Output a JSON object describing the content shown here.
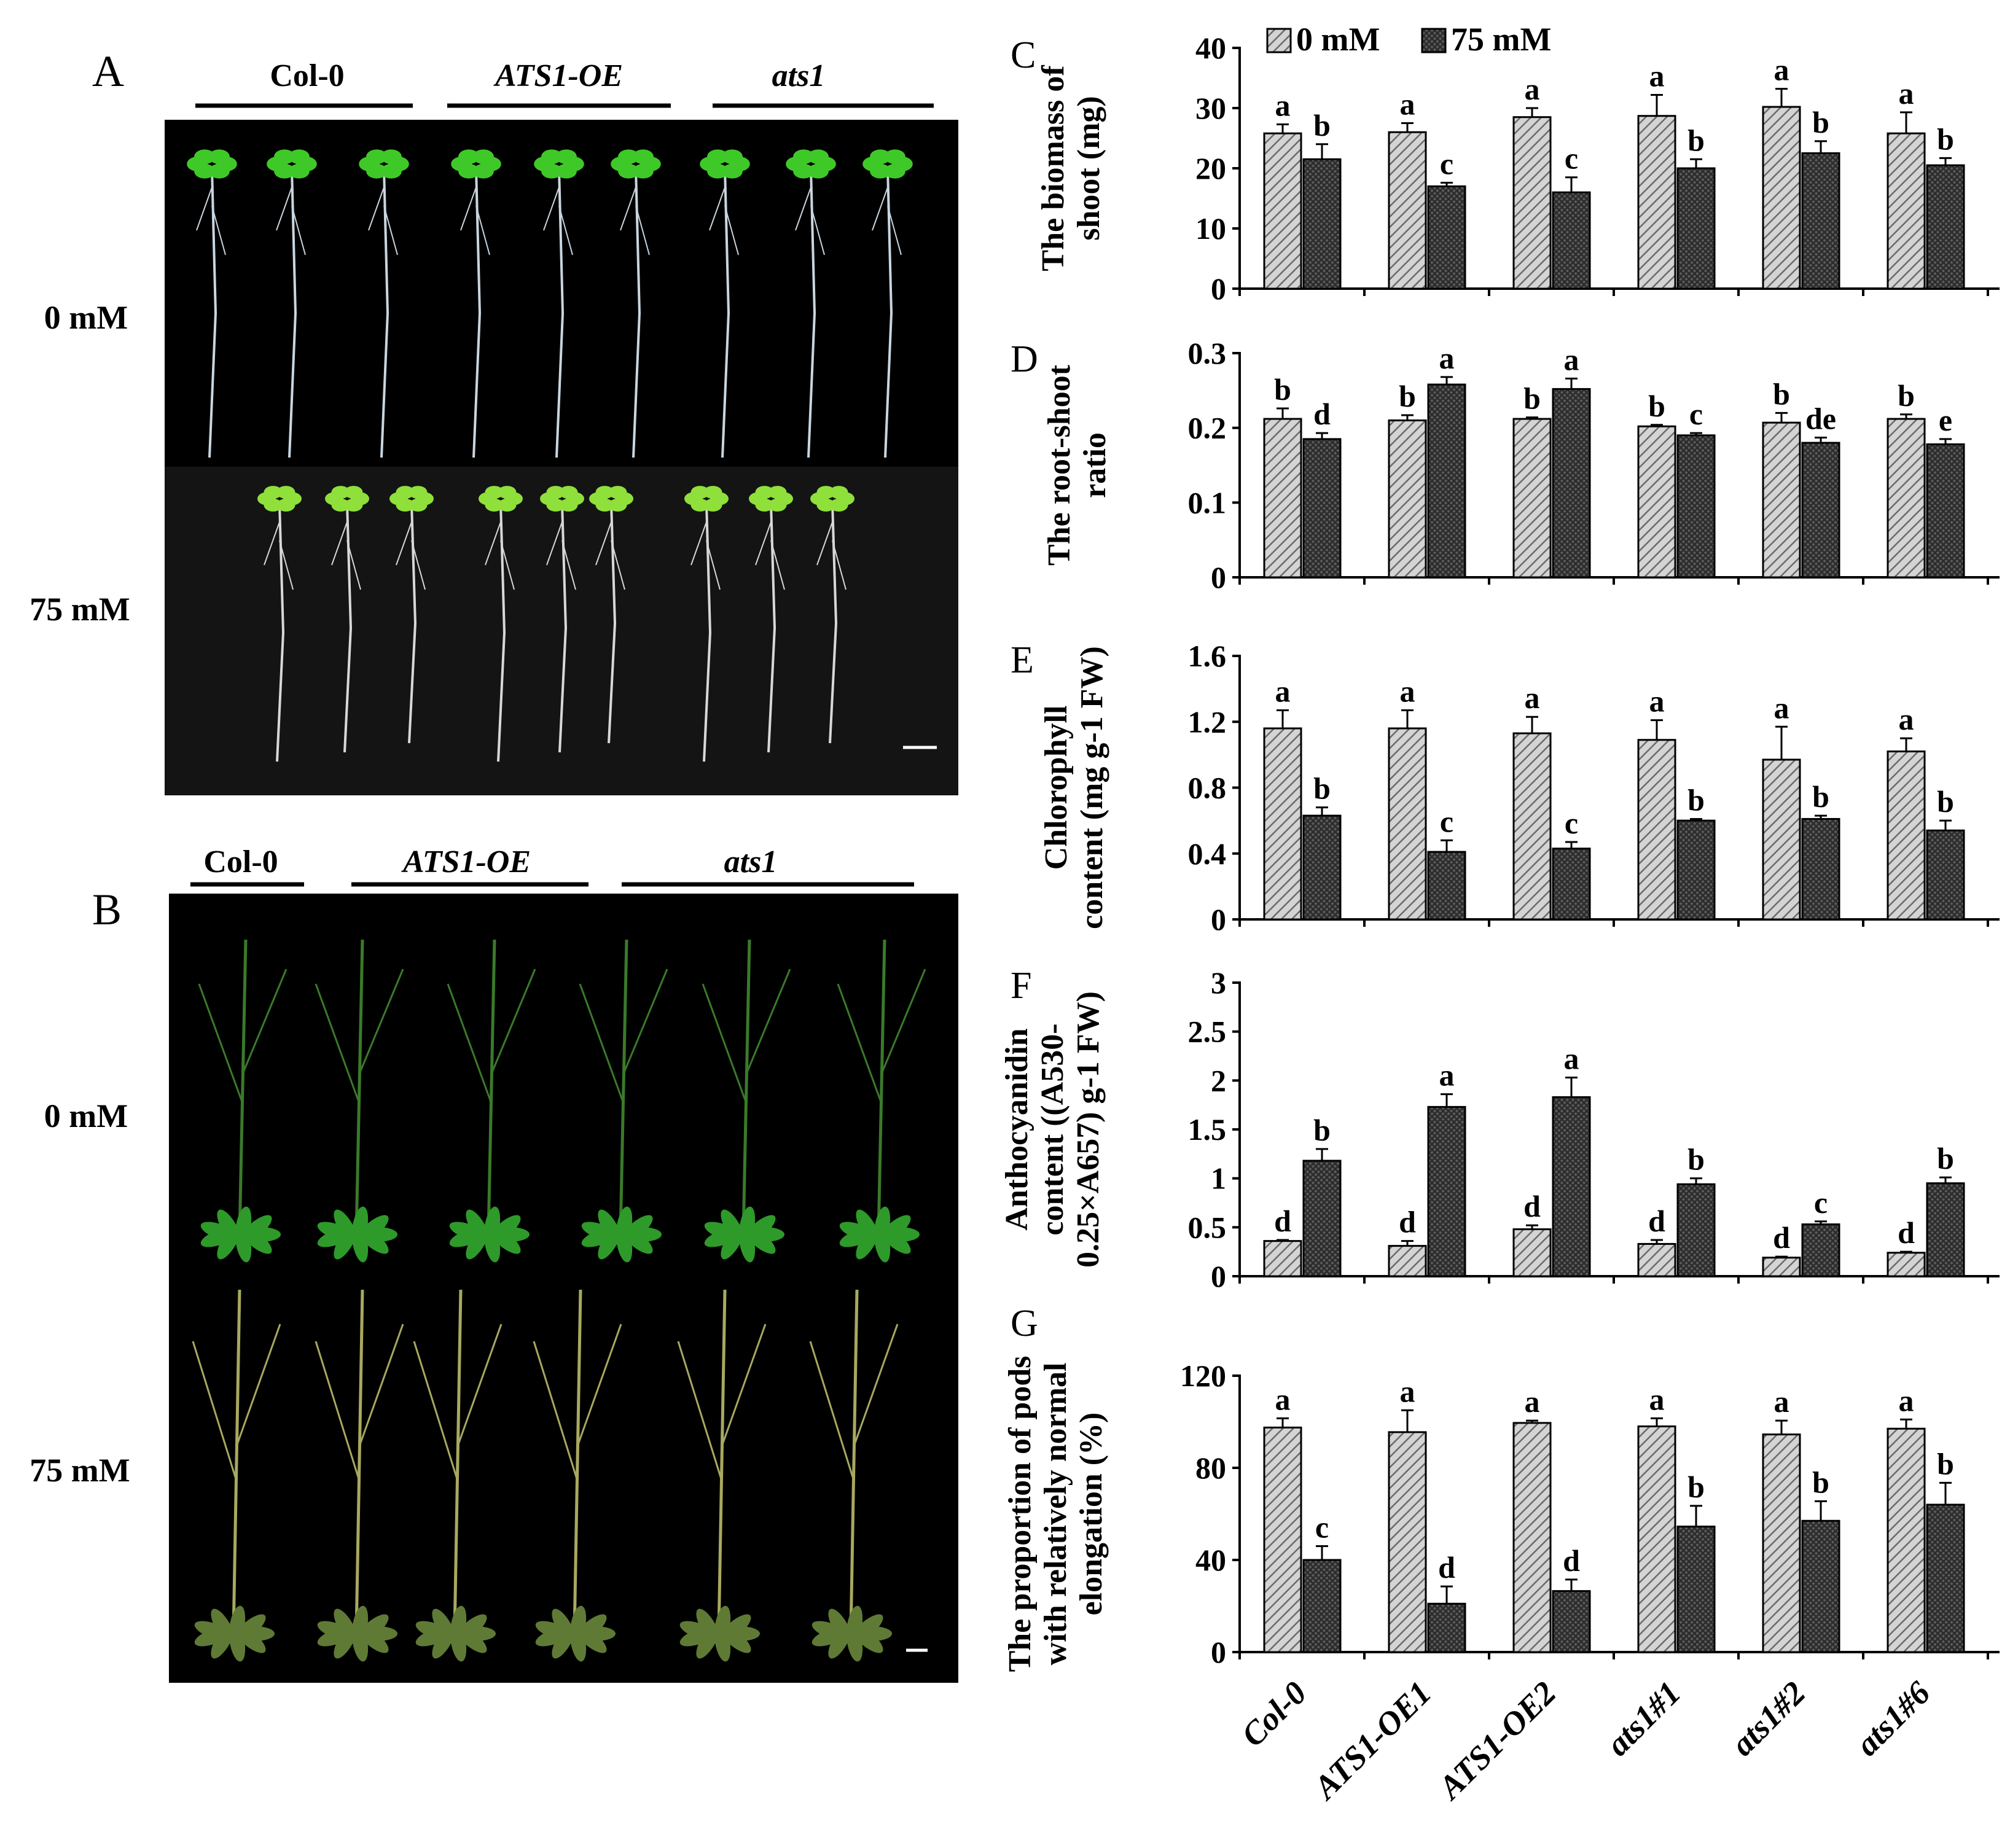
{
  "panel_a": {
    "letter": "A",
    "groups": [
      "Col-0",
      "ATS1-OE",
      "ats1"
    ],
    "row_labels": [
      "0 mM",
      "75 mM"
    ]
  },
  "panel_b": {
    "letter": "B",
    "groups": [
      "Col-0",
      "ATS1-OE",
      "ats1"
    ],
    "row_labels": [
      "0 mM",
      "75 mM"
    ]
  },
  "legend": [
    "0 mM",
    "75 mM"
  ],
  "x_categories": [
    "Col-0",
    "ATS1-OE1",
    "ATS1-OE2",
    "ats1#1",
    "ats1#2",
    "ats1#6"
  ],
  "colors": {
    "background": "#ffffff",
    "photo_bg": "#000000",
    "plant_green": "#3fbf2a",
    "bar_0mM": "#a8a8a8",
    "bar_75mM": "#4a4a4a"
  },
  "chart_data": [
    {
      "type": "bar",
      "panel": "C",
      "ylabel": [
        "The biomass of",
        "shoot  (mg)"
      ],
      "ylim": [
        0,
        40
      ],
      "yticks": [
        "0",
        "10",
        "20",
        "30",
        "40"
      ],
      "ytick_values": [
        0,
        10,
        20,
        30,
        40
      ],
      "categories": [
        "Col-0",
        "ATS1-OE1",
        "ATS1-OE2",
        "ats1#1",
        "ats1#2",
        "ats1#6"
      ],
      "series": [
        {
          "name": "0 mM",
          "values": [
            25.8,
            26.0,
            28.5,
            28.7,
            30.2,
            25.8
          ],
          "errors": [
            1.5,
            1.5,
            1.5,
            3.5,
            3.0,
            3.5
          ],
          "letters": [
            "a",
            "a",
            "a",
            "a",
            "a",
            "a"
          ]
        },
        {
          "name": "75 mM",
          "values": [
            21.5,
            17.0,
            16.0,
            20.0,
            22.5,
            20.5
          ],
          "errors": [
            2.5,
            0.6,
            2.5,
            1.5,
            2.0,
            1.2
          ],
          "letters": [
            "b",
            "c",
            "c",
            "b",
            "b",
            "b"
          ]
        }
      ]
    },
    {
      "type": "bar",
      "panel": "D",
      "ylabel": [
        "The root-shoot",
        "ratio"
      ],
      "ylim": [
        0,
        0.3
      ],
      "yticks": [
        "0",
        "0.1",
        "0.2",
        "0.3"
      ],
      "ytick_values": [
        0,
        0.1,
        0.2,
        0.3
      ],
      "categories": [
        "Col-0",
        "ATS1-OE1",
        "ATS1-OE2",
        "ats1#1",
        "ats1#2",
        "ats1#6"
      ],
      "series": [
        {
          "name": "0 mM",
          "values": [
            0.212,
            0.21,
            0.212,
            0.202,
            0.207,
            0.212
          ],
          "errors": [
            0.014,
            0.007,
            0.002,
            0.002,
            0.013,
            0.006
          ],
          "letters": [
            "b",
            "b",
            "b",
            "b",
            "b",
            "b"
          ]
        },
        {
          "name": "75 mM",
          "values": [
            0.185,
            0.258,
            0.252,
            0.19,
            0.18,
            0.178
          ],
          "errors": [
            0.008,
            0.01,
            0.014,
            0.003,
            0.007,
            0.007
          ],
          "letters": [
            "d",
            "a",
            "a",
            "c",
            "de",
            "e"
          ]
        }
      ]
    },
    {
      "type": "bar",
      "panel": "E",
      "ylabel": [
        "Chlorophyll",
        "content (mg g-1 FW)"
      ],
      "ylim": [
        0,
        1.6
      ],
      "yticks": [
        "0",
        "0.4",
        "0.8",
        "1.2",
        "1.6"
      ],
      "ytick_values": [
        0,
        0.4,
        0.8,
        1.2,
        1.6
      ],
      "categories": [
        "Col-0",
        "ATS1-OE1",
        "ATS1-OE2",
        "ats1#1",
        "ats1#2",
        "ats1#6"
      ],
      "series": [
        {
          "name": "0 mM",
          "values": [
            1.16,
            1.16,
            1.13,
            1.09,
            0.97,
            1.02
          ],
          "errors": [
            0.11,
            0.11,
            0.1,
            0.12,
            0.2,
            0.08
          ],
          "letters": [
            "a",
            "a",
            "a",
            "a",
            "a",
            "a"
          ]
        },
        {
          "name": "75 mM",
          "values": [
            0.63,
            0.41,
            0.43,
            0.6,
            0.61,
            0.54
          ],
          "errors": [
            0.05,
            0.07,
            0.04,
            0.01,
            0.02,
            0.06
          ],
          "letters": [
            "b",
            "c",
            "c",
            "b",
            "b",
            "b"
          ]
        }
      ]
    },
    {
      "type": "bar",
      "panel": "F",
      "ylabel": [
        "Anthocyanidin",
        "content ((A530-",
        "0.25×A657) g-1 FW)"
      ],
      "ylim": [
        0,
        3
      ],
      "yticks": [
        "0",
        "0.5",
        "1",
        "1.5",
        "2",
        "2.5",
        "3"
      ],
      "ytick_values": [
        0,
        0.5,
        1,
        1.5,
        2,
        2.5,
        3
      ],
      "categories": [
        "Col-0",
        "ATS1-OE1",
        "ATS1-OE2",
        "ats1#1",
        "ats1#2",
        "ats1#6"
      ],
      "series": [
        {
          "name": "0 mM",
          "values": [
            0.36,
            0.31,
            0.48,
            0.33,
            0.19,
            0.24
          ],
          "errors": [
            0.01,
            0.05,
            0.04,
            0.04,
            0.01,
            0.01
          ],
          "letters": [
            "d",
            "d",
            "d",
            "d",
            "d",
            "d"
          ]
        },
        {
          "name": "75 mM",
          "values": [
            1.18,
            1.73,
            1.83,
            0.94,
            0.53,
            0.95
          ],
          "errors": [
            0.12,
            0.13,
            0.2,
            0.06,
            0.03,
            0.06
          ],
          "letters": [
            "b",
            "a",
            "a",
            "b",
            "c",
            "b"
          ]
        }
      ]
    },
    {
      "type": "bar",
      "panel": "G",
      "ylabel": [
        "The proportion of pods",
        "with relatively normal",
        "elongation (%)"
      ],
      "ylim": [
        0,
        120
      ],
      "yticks": [
        "0",
        "40",
        "80",
        "120"
      ],
      "ytick_values": [
        0,
        40,
        80,
        120
      ],
      "categories": [
        "Col-0",
        "ATS1-OE1",
        "ATS1-OE2",
        "ats1#1",
        "ats1#2",
        "ats1#6"
      ],
      "series": [
        {
          "name": "0 mM",
          "values": [
            97.5,
            95.5,
            99.5,
            98.0,
            94.5,
            97.0
          ],
          "errors": [
            4.0,
            9.5,
            1.0,
            3.5,
            6.0,
            4.0
          ],
          "letters": [
            "a",
            "a",
            "a",
            "a",
            "a",
            "a"
          ]
        },
        {
          "name": "75 mM",
          "values": [
            40.0,
            21.0,
            26.5,
            54.5,
            57.0,
            64.0
          ],
          "errors": [
            6.0,
            7.5,
            5.0,
            9.0,
            8.5,
            9.5
          ],
          "letters": [
            "c",
            "d",
            "d",
            "b",
            "b",
            "b"
          ]
        }
      ]
    }
  ]
}
